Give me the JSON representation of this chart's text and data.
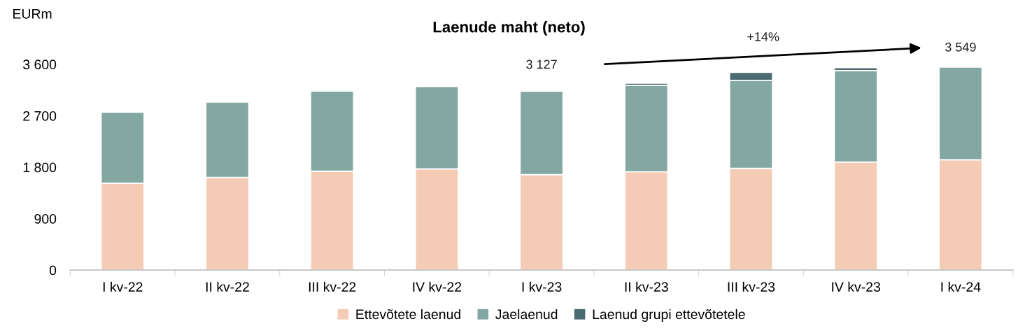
{
  "chart_data": {
    "type": "bar",
    "title": "Laenude maht (neto)",
    "ylabel": "EURm",
    "stacked": true,
    "categories": [
      "I kv-22",
      "II kv-22",
      "III kv-22",
      "IV kv-22",
      "I kv-23",
      "II kv-23",
      "III kv-23",
      "IV kv-23",
      "I kv-24"
    ],
    "series": [
      {
        "name": "Ettevõtete laenud",
        "color": "#f4cbb4",
        "values": [
          1520,
          1620,
          1730,
          1770,
          1670,
          1720,
          1780,
          1890,
          1930
        ]
      },
      {
        "name": "Jaelaenud",
        "color": "#83a7a1",
        "values": [
          1240,
          1320,
          1400,
          1440,
          1457,
          1510,
          1540,
          1600,
          1619
        ]
      },
      {
        "name": "Laenud grupi ettevõtetele",
        "color": "#4a6a72",
        "values": [
          null,
          null,
          null,
          null,
          null,
          40,
          140,
          50,
          null
        ]
      }
    ],
    "totals": [
      null,
      null,
      null,
      null,
      "3 127",
      null,
      null,
      null,
      "3 549"
    ],
    "annotations": [
      "+14%"
    ],
    "ylim": [
      0,
      3600
    ],
    "yticks": [
      {
        "value": 0,
        "label": "0"
      },
      {
        "value": 900,
        "label": "900"
      },
      {
        "value": 1800,
        "label": "1 800"
      },
      {
        "value": 2700,
        "label": "2 700"
      },
      {
        "value": 3600,
        "label": "3 600"
      }
    ],
    "grid": false,
    "legend": "bottom"
  }
}
